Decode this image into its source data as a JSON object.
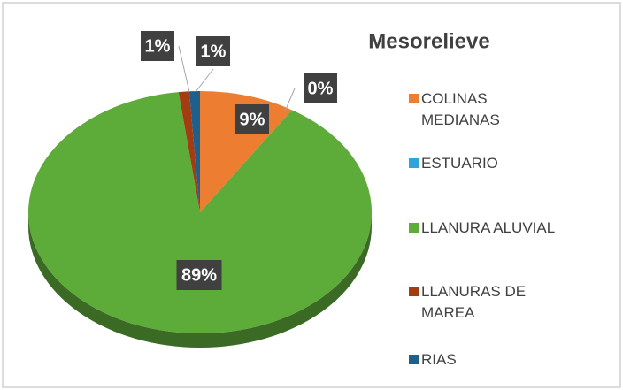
{
  "chart_data": {
    "type": "pie",
    "title": "Mesorelieve",
    "categories": [
      "COLINAS MEDIANAS",
      "ESTUARIO",
      "LLANURA ALUVIAL",
      "LLANURAS DE MAREA",
      "RIAS"
    ],
    "values": [
      9,
      0,
      89,
      1,
      1
    ],
    "value_labels": [
      "9%",
      "0%",
      "89%",
      "1%",
      "1%"
    ],
    "colors": [
      "#ed7d31",
      "#2ea3dc",
      "#5dab38",
      "#a33c12",
      "#1f5f8b"
    ],
    "legend": "right"
  }
}
